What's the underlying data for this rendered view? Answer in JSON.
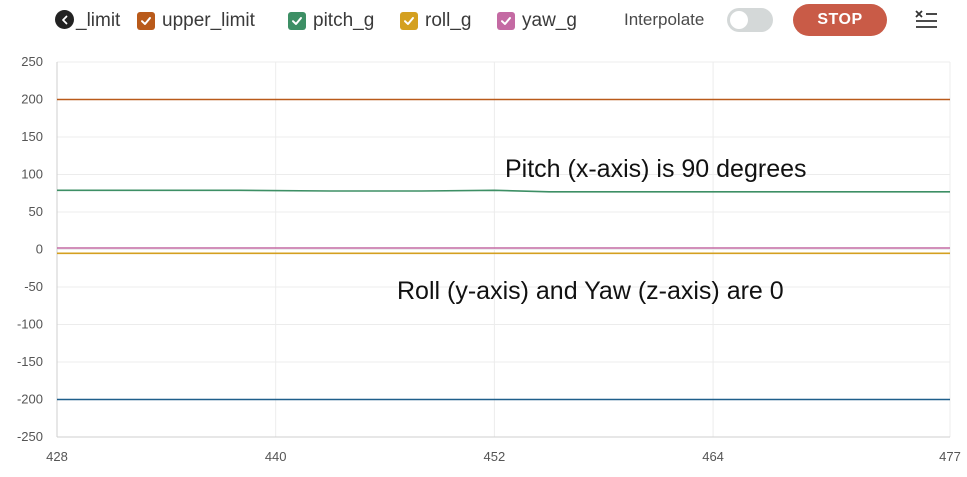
{
  "legend": {
    "items": [
      {
        "label": "_limit",
        "color": "#1f5f8b",
        "partial": true
      },
      {
        "label": "upper_limit",
        "color": "#b95a1a"
      },
      {
        "label": "pitch_g",
        "color": "#3d8f65"
      },
      {
        "label": "roll_g",
        "color": "#d4a020"
      },
      {
        "label": "yaw_g",
        "color": "#c46aa3"
      }
    ],
    "scroll_icon": "chevron-left-icon"
  },
  "controls": {
    "interpolate_label": "Interpolate",
    "interpolate_on": false,
    "stop_label": "STOP",
    "stop_color": "#c95b47",
    "menu_icon": "clear-list-icon"
  },
  "chart_data": {
    "type": "line",
    "x_range": [
      428,
      477
    ],
    "x_ticks": [
      428,
      440,
      452,
      464,
      477
    ],
    "ylim": [
      -250,
      250
    ],
    "y_ticks": [
      250,
      200,
      150,
      100,
      50,
      0,
      -50,
      -100,
      -150,
      -200,
      -250
    ],
    "grid": true,
    "series": [
      {
        "name": "lower_limit",
        "color": "#1f5f8b",
        "x": [
          428,
          433,
          441,
          449,
          457,
          465,
          470,
          477
        ],
        "y": [
          -200,
          -200,
          -200,
          -200,
          -200,
          -200,
          -200,
          -200
        ]
      },
      {
        "name": "upper_limit",
        "color": "#b95a1a",
        "x": [
          428,
          437,
          446,
          455,
          464,
          477
        ],
        "y": [
          200,
          200,
          200,
          200,
          200,
          200
        ]
      },
      {
        "name": "pitch_g",
        "color": "#3d8f65",
        "x": [
          428,
          433,
          438,
          443,
          448,
          452,
          455,
          460,
          465,
          470,
          474,
          477
        ],
        "y": [
          79,
          79,
          79,
          78,
          78,
          79,
          77,
          77,
          77,
          77,
          77,
          77
        ]
      },
      {
        "name": "roll_g",
        "color": "#d4a020",
        "x": [
          428,
          437,
          446,
          455,
          464,
          477
        ],
        "y": [
          -5,
          -5,
          -5,
          -5,
          -5,
          -5
        ]
      },
      {
        "name": "yaw_g",
        "color": "#c46aa3",
        "x": [
          428,
          437,
          446,
          455,
          464,
          477
        ],
        "y": [
          2,
          2,
          2,
          2,
          2,
          2
        ]
      }
    ],
    "annotations": [
      {
        "text": "Pitch (x-axis) is 90 degrees"
      },
      {
        "text": "Roll (y-axis) and Yaw (z-axis) are 0"
      }
    ]
  }
}
